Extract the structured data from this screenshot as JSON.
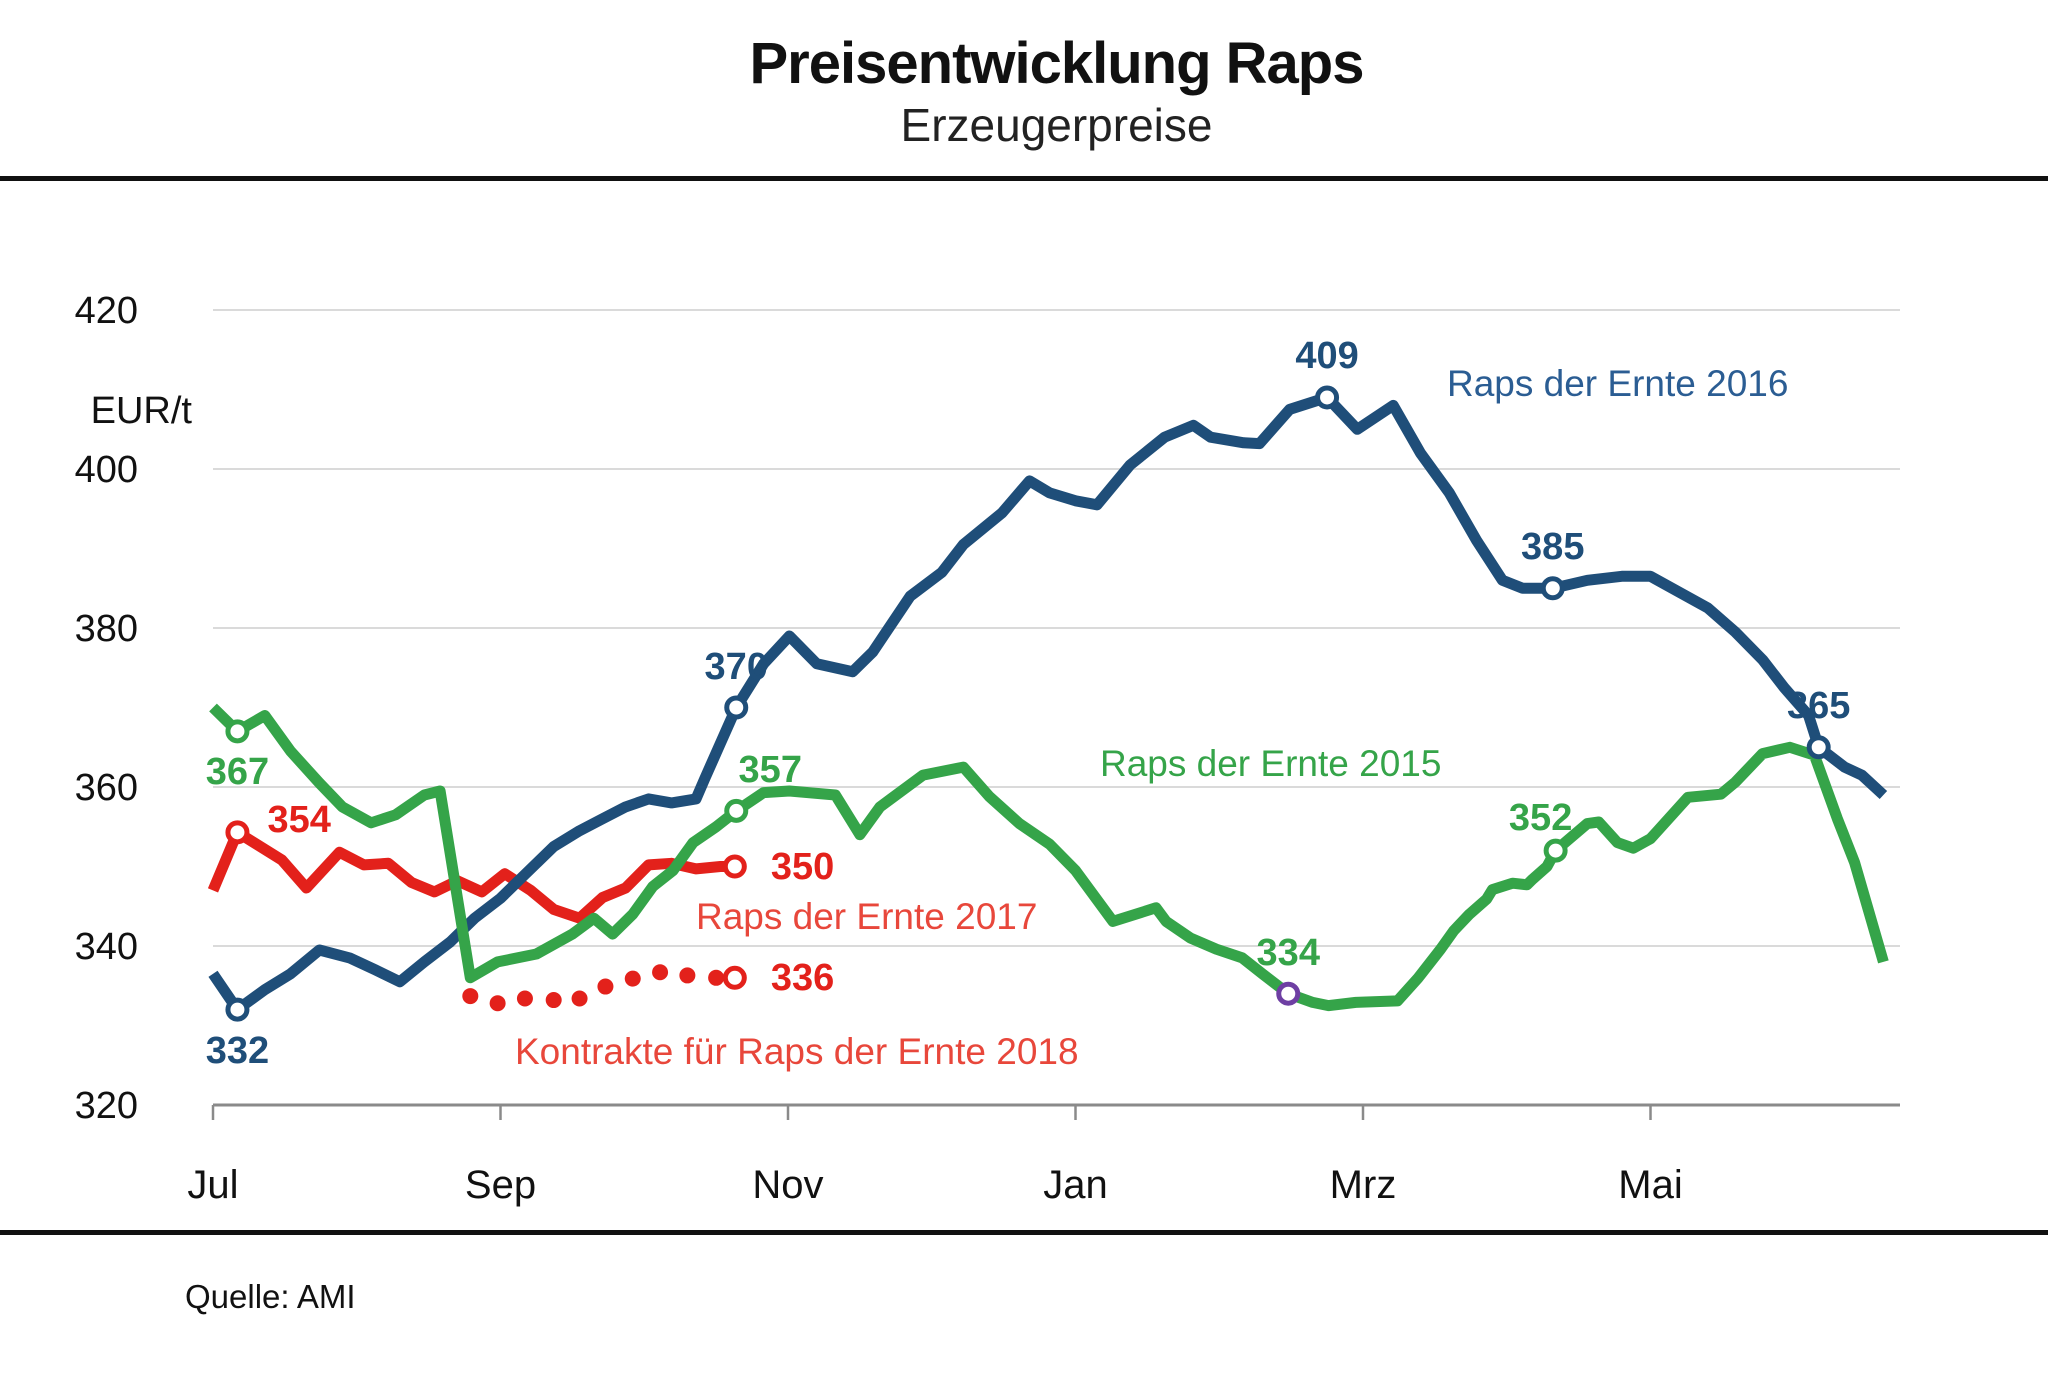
{
  "title": "Preisentwicklung Raps",
  "subtitle": "Erzeugerpreise",
  "source": "Quelle: AMI",
  "y_axis": {
    "unit": "EUR/t",
    "ticks": [
      420,
      400,
      380,
      360,
      340,
      320
    ],
    "min": 320,
    "max": 420
  },
  "x_axis": {
    "tick_labels": [
      "Jul",
      "Sep",
      "Nov",
      "Jan",
      "Mrz",
      "Mai"
    ],
    "months_per_tick": 2
  },
  "colors": {
    "blue": "#1F4E79",
    "green": "#35A449",
    "red": "#E3211B",
    "purple_ring": "#6E3FA3",
    "grid": "#DADADA",
    "axis": "#8A8A8A"
  },
  "chart_data": {
    "type": "line",
    "x_unit": "months after July",
    "xlim": [
      0,
      12
    ],
    "ylim": [
      320,
      420
    ],
    "grid": "horizontal",
    "series": [
      {
        "name": "Raps der Ernte 2017",
        "color": "#E3211B",
        "style": "solid",
        "points": [
          [
            0,
            347
          ],
          [
            0.17,
            354.3
          ],
          [
            0.48,
            350.8
          ],
          [
            0.65,
            347.3
          ],
          [
            0.88,
            351.8
          ],
          [
            1.05,
            350.2
          ],
          [
            1.22,
            350.4
          ],
          [
            1.38,
            348
          ],
          [
            1.54,
            346.8
          ],
          [
            1.7,
            348.2
          ],
          [
            1.87,
            346.8
          ],
          [
            2.03,
            349.1
          ],
          [
            2.21,
            347
          ],
          [
            2.37,
            344.6
          ],
          [
            2.55,
            343.5
          ],
          [
            2.71,
            346.1
          ],
          [
            2.87,
            347.3
          ],
          [
            3.03,
            350.2
          ],
          [
            3.19,
            350.4
          ],
          [
            3.36,
            349.7
          ],
          [
            3.53,
            350
          ],
          [
            3.63,
            350
          ]
        ],
        "markers": [
          {
            "m": 0.17,
            "v": 354.3,
            "label": "354",
            "placement": "right-up"
          },
          {
            "m": 3.63,
            "v": 350,
            "label": "350",
            "placement": "right"
          }
        ]
      },
      {
        "name": "Raps der Ernte 2016",
        "color": "#1F4E79",
        "style": "solid",
        "points": [
          [
            0,
            336.5
          ],
          [
            0.17,
            332
          ],
          [
            0.36,
            334.5
          ],
          [
            0.54,
            336.5
          ],
          [
            0.74,
            339.5
          ],
          [
            0.95,
            338.5
          ],
          [
            1.13,
            337
          ],
          [
            1.3,
            335.5
          ],
          [
            1.47,
            338
          ],
          [
            1.65,
            340.5
          ],
          [
            1.82,
            343.5
          ],
          [
            2,
            346
          ],
          [
            2.17,
            349
          ],
          [
            2.37,
            352.5
          ],
          [
            2.55,
            354.5
          ],
          [
            2.71,
            356
          ],
          [
            2.87,
            357.5
          ],
          [
            3.03,
            358.5
          ],
          [
            3.19,
            358
          ],
          [
            3.36,
            358.5
          ],
          [
            3.42,
            361
          ],
          [
            3.53,
            365.5
          ],
          [
            3.64,
            370
          ],
          [
            3.83,
            375.5
          ],
          [
            4.01,
            379
          ],
          [
            4.2,
            375.5
          ],
          [
            4.45,
            374.5
          ],
          [
            4.59,
            377
          ],
          [
            4.85,
            384
          ],
          [
            5.07,
            387
          ],
          [
            5.22,
            390.5
          ],
          [
            5.49,
            394.5
          ],
          [
            5.68,
            398.5
          ],
          [
            5.82,
            397
          ],
          [
            6,
            396
          ],
          [
            6.15,
            395.5
          ],
          [
            6.38,
            400.5
          ],
          [
            6.62,
            404
          ],
          [
            6.82,
            405.5
          ],
          [
            6.94,
            404
          ],
          [
            7.17,
            403.3
          ],
          [
            7.28,
            403.2
          ],
          [
            7.49,
            407.5
          ],
          [
            7.75,
            409
          ],
          [
            7.96,
            405
          ],
          [
            8.21,
            408
          ],
          [
            8.4,
            402
          ],
          [
            8.6,
            397
          ],
          [
            8.79,
            391
          ],
          [
            8.97,
            386
          ],
          [
            9.11,
            385
          ],
          [
            9.32,
            385
          ],
          [
            9.56,
            386
          ],
          [
            9.8,
            386.5
          ],
          [
            10,
            386.5
          ],
          [
            10.4,
            382.5
          ],
          [
            10.59,
            379.5
          ],
          [
            10.78,
            376
          ],
          [
            10.93,
            372.5
          ],
          [
            11.1,
            369
          ],
          [
            11.17,
            365
          ],
          [
            11.35,
            362.5
          ],
          [
            11.47,
            361.5
          ],
          [
            11.62,
            359
          ]
        ],
        "markers": [
          {
            "m": 0.17,
            "v": 332,
            "label": "332",
            "placement": "below"
          },
          {
            "m": 3.64,
            "v": 370,
            "label": "370",
            "placement": "above"
          },
          {
            "m": 7.75,
            "v": 409,
            "label": "409",
            "placement": "above"
          },
          {
            "m": 9.32,
            "v": 385,
            "label": "385",
            "placement": "above"
          },
          {
            "m": 11.17,
            "v": 365,
            "label": "365",
            "placement": "above"
          }
        ]
      },
      {
        "name": "Raps der Ernte 2015",
        "color": "#35A449",
        "style": "solid",
        "points": [
          [
            0,
            370
          ],
          [
            0.17,
            367
          ],
          [
            0.36,
            369
          ],
          [
            0.54,
            364.5
          ],
          [
            0.74,
            360.5
          ],
          [
            0.9,
            357.5
          ],
          [
            1.1,
            355.5
          ],
          [
            1.27,
            356.5
          ],
          [
            1.47,
            359
          ],
          [
            1.58,
            359.5
          ],
          [
            1.79,
            336
          ],
          [
            1.98,
            338
          ],
          [
            2.25,
            339
          ],
          [
            2.5,
            341.5
          ],
          [
            2.65,
            343.5
          ],
          [
            2.78,
            341.5
          ],
          [
            2.92,
            344
          ],
          [
            3.06,
            347.5
          ],
          [
            3.2,
            349.5
          ],
          [
            3.34,
            353
          ],
          [
            3.5,
            355
          ],
          [
            3.64,
            357
          ],
          [
            3.83,
            359.3
          ],
          [
            4.01,
            359.5
          ],
          [
            4.33,
            359
          ],
          [
            4.5,
            354
          ],
          [
            4.64,
            357.5
          ],
          [
            4.94,
            361.5
          ],
          [
            5.22,
            362.5
          ],
          [
            5.4,
            358.8
          ],
          [
            5.61,
            355.4
          ],
          [
            5.82,
            352.8
          ],
          [
            6,
            349.5
          ],
          [
            6.26,
            343.1
          ],
          [
            6.56,
            344.8
          ],
          [
            6.63,
            343.1
          ],
          [
            6.8,
            341
          ],
          [
            6.98,
            339.6
          ],
          [
            7.16,
            338.5
          ],
          [
            7.3,
            336.5
          ],
          [
            7.48,
            334
          ],
          [
            7.65,
            332.9
          ],
          [
            7.76,
            332.5
          ],
          [
            7.95,
            332.9
          ],
          [
            8.24,
            333.1
          ],
          [
            8.38,
            335.9
          ],
          [
            8.54,
            339.6
          ],
          [
            8.63,
            341.9
          ],
          [
            8.74,
            344
          ],
          [
            8.86,
            345.9
          ],
          [
            8.9,
            347.1
          ],
          [
            9.04,
            347.9
          ],
          [
            9.14,
            347.7
          ],
          [
            9.18,
            348.4
          ],
          [
            9.28,
            350
          ],
          [
            9.34,
            352
          ],
          [
            9.56,
            355.4
          ],
          [
            9.64,
            355.6
          ],
          [
            9.77,
            353
          ],
          [
            9.88,
            352.3
          ],
          [
            10,
            353.5
          ],
          [
            10.26,
            358.7
          ],
          [
            10.49,
            359.1
          ],
          [
            10.59,
            360.6
          ],
          [
            10.78,
            364.2
          ],
          [
            10.97,
            365
          ],
          [
            11.14,
            364
          ],
          [
            11.3,
            356
          ],
          [
            11.42,
            350.5
          ],
          [
            11.62,
            338
          ]
        ],
        "markers": [
          {
            "m": 0.17,
            "v": 367,
            "label": "367",
            "placement": "below"
          },
          {
            "m": 3.64,
            "v": 357,
            "label": "357",
            "placement": "above-right"
          },
          {
            "m": 7.48,
            "v": 334,
            "label": "334",
            "placement": "above",
            "ring": "#6E3FA3"
          },
          {
            "m": 9.34,
            "v": 352,
            "label": "352",
            "placement": "above-left"
          }
        ]
      },
      {
        "name": "Kontrakte für Raps der Ernte 2018",
        "color": "#E3211B",
        "style": "dotted",
        "points": [
          [
            1.79,
            333.7
          ],
          [
            1.98,
            332.8
          ],
          [
            2.17,
            333.4
          ],
          [
            2.37,
            333.2
          ],
          [
            2.55,
            333.4
          ],
          [
            2.73,
            334.9
          ],
          [
            2.92,
            335.9
          ],
          [
            3.11,
            336.7
          ],
          [
            3.3,
            336.3
          ],
          [
            3.5,
            336
          ],
          [
            3.63,
            336
          ]
        ],
        "markers": [
          {
            "m": 3.63,
            "v": 336,
            "label": "336",
            "placement": "right"
          }
        ]
      }
    ],
    "legend_labels": {
      "s2016": "Raps der Ernte 2016",
      "s2015": "Raps der Ernte 2015",
      "s2017": "Raps der Ernte 2017",
      "s2018": "Kontrakte für Raps der Ernte 2018"
    }
  }
}
